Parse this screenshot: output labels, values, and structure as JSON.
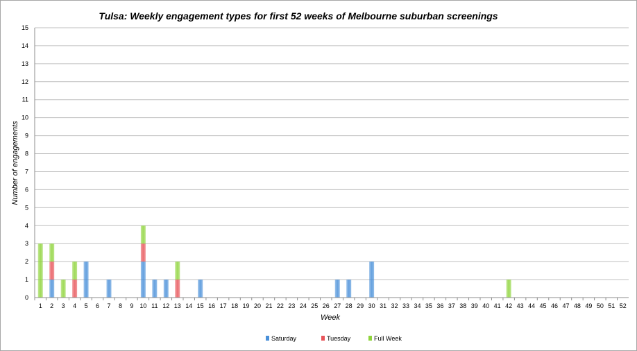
{
  "chart_data": {
    "type": "bar",
    "stacked": true,
    "title": "Tulsa: Weekly engagement types for first 52 weeks of Melbourne suburban screenings",
    "xlabel": "Week",
    "ylabel": "Number of engagements",
    "ylim": [
      0,
      15
    ],
    "y_ticks": [
      "0",
      "1",
      "2",
      "3",
      "4",
      "5",
      "6",
      "7",
      "8",
      "9",
      "10",
      "11",
      "12",
      "13",
      "14",
      "15"
    ],
    "grid": true,
    "legend_position": "bottom",
    "categories": [
      "1",
      "2",
      "3",
      "4",
      "5",
      "6",
      "7",
      "8",
      "9",
      "10",
      "11",
      "12",
      "13",
      "14",
      "15",
      "16",
      "17",
      "18",
      "19",
      "20",
      "21",
      "22",
      "23",
      "24",
      "25",
      "26",
      "27",
      "28",
      "29",
      "30",
      "31",
      "32",
      "33",
      "34",
      "35",
      "36",
      "37",
      "38",
      "39",
      "40",
      "41",
      "42",
      "43",
      "44",
      "45",
      "46",
      "47",
      "48",
      "49",
      "50",
      "51",
      "52"
    ],
    "series": [
      {
        "name": "Saturday",
        "color": "#4a90d9",
        "values": [
          0,
          1,
          0,
          0,
          2,
          0,
          1,
          0,
          0,
          2,
          1,
          1,
          0,
          0,
          1,
          0,
          0,
          0,
          0,
          0,
          0,
          0,
          0,
          0,
          0,
          0,
          1,
          1,
          0,
          2,
          0,
          0,
          0,
          0,
          0,
          0,
          0,
          0,
          0,
          0,
          0,
          0,
          0,
          0,
          0,
          0,
          0,
          0,
          0,
          0,
          0,
          0
        ]
      },
      {
        "name": "Tuesday",
        "color": "#e8555a",
        "values": [
          0,
          1,
          0,
          1,
          0,
          0,
          0,
          0,
          0,
          1,
          0,
          0,
          1,
          0,
          0,
          0,
          0,
          0,
          0,
          0,
          0,
          0,
          0,
          0,
          0,
          0,
          0,
          0,
          0,
          0,
          0,
          0,
          0,
          0,
          0,
          0,
          0,
          0,
          0,
          0,
          0,
          0,
          0,
          0,
          0,
          0,
          0,
          0,
          0,
          0,
          0,
          0
        ]
      },
      {
        "name": "Full Week",
        "color": "#8fd43c",
        "values": [
          3,
          1,
          1,
          1,
          0,
          0,
          0,
          0,
          0,
          1,
          0,
          0,
          1,
          0,
          0,
          0,
          0,
          0,
          0,
          0,
          0,
          0,
          0,
          0,
          0,
          0,
          0,
          0,
          0,
          0,
          0,
          0,
          0,
          0,
          0,
          0,
          0,
          0,
          0,
          0,
          0,
          1,
          0,
          0,
          0,
          0,
          0,
          0,
          0,
          0,
          0,
          0
        ]
      }
    ]
  }
}
